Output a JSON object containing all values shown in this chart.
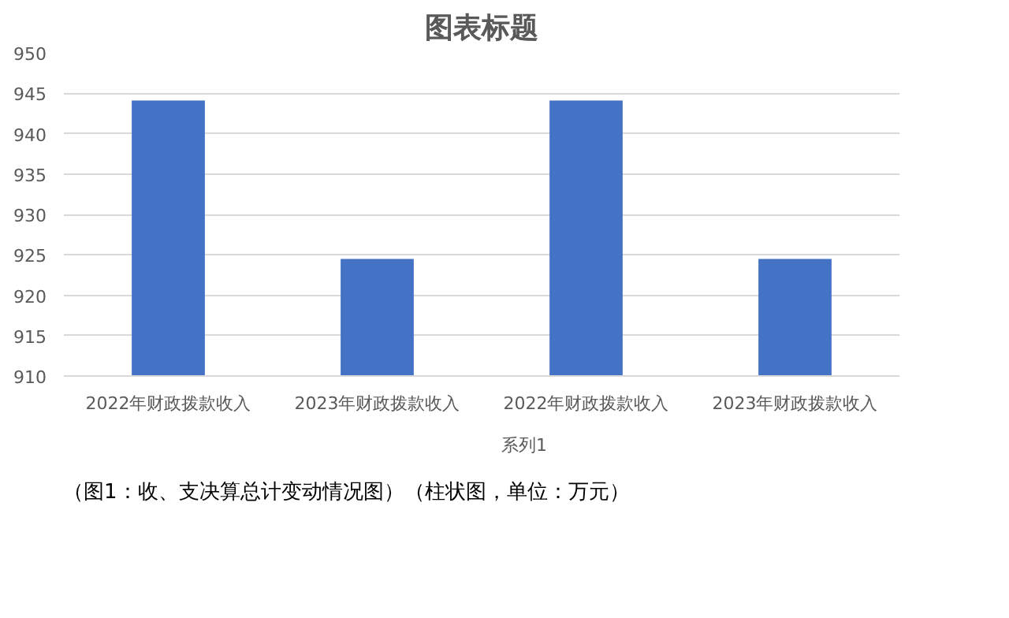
{
  "chart_data": {
    "type": "bar",
    "title": "图表标题",
    "categories": [
      "2022年财政拨款收入",
      "2023年财政拨款收入",
      "2022年财政拨款收入",
      "2023年财政拨款收入"
    ],
    "series": [
      {
        "name": "系列1",
        "color": "#4472c4",
        "values": [
          944.1,
          924.5,
          944.1,
          924.5
        ]
      }
    ],
    "ylim": [
      910,
      950
    ],
    "yticks": [
      910,
      915,
      920,
      925,
      930,
      935,
      940,
      945,
      950
    ],
    "grid": "y",
    "legend": "bottom",
    "annotations": [
      "（图1：收、支决算总计变动情况图）（柱状图，单位：万元）"
    ]
  }
}
